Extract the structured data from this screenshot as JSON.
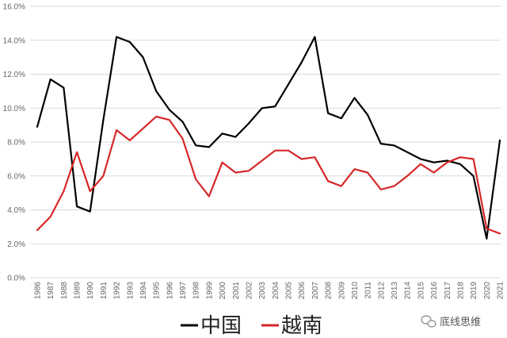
{
  "chart_data": {
    "type": "line",
    "title": "",
    "xlabel": "",
    "ylabel": "",
    "ylim": [
      0,
      16
    ],
    "y_tick_step": 2,
    "y_tick_format": "percent-1dp",
    "grid": "horizontal",
    "legend_position": "bottom-center",
    "categories": [
      "1986",
      "1987",
      "1988",
      "1989",
      "1990",
      "1991",
      "1992",
      "1993",
      "1994",
      "1995",
      "1996",
      "1997",
      "1998",
      "1999",
      "2000",
      "2001",
      "2002",
      "2003",
      "2004",
      "2005",
      "2006",
      "2007",
      "2008",
      "2009",
      "2010",
      "2011",
      "2012",
      "2013",
      "2014",
      "2015",
      "2016",
      "2017",
      "2018",
      "2019",
      "2020",
      "2021"
    ],
    "series": [
      {
        "name": "中国",
        "color": "#000000",
        "values": [
          8.9,
          11.7,
          11.2,
          4.2,
          3.9,
          9.3,
          14.2,
          13.9,
          13.0,
          11.0,
          9.9,
          9.2,
          7.8,
          7.7,
          8.5,
          8.3,
          9.1,
          10.0,
          10.1,
          11.4,
          12.7,
          14.2,
          9.7,
          9.4,
          10.6,
          9.6,
          7.9,
          7.8,
          7.4,
          7.0,
          6.8,
          6.9,
          6.7,
          6.0,
          2.3,
          8.1
        ]
      },
      {
        "name": "越南",
        "color": "#d62728",
        "values": [
          2.8,
          3.6,
          5.1,
          7.4,
          5.1,
          6.0,
          8.7,
          8.1,
          8.8,
          9.5,
          9.3,
          8.2,
          5.8,
          4.8,
          6.8,
          6.2,
          6.3,
          6.9,
          7.5,
          7.5,
          7.0,
          7.1,
          5.7,
          5.4,
          6.4,
          6.2,
          5.2,
          5.4,
          6.0,
          6.7,
          6.2,
          6.8,
          7.1,
          7.0,
          2.9,
          2.6
        ]
      }
    ]
  },
  "watermark": {
    "text": "底线思维",
    "icon": "wechat-icon"
  }
}
